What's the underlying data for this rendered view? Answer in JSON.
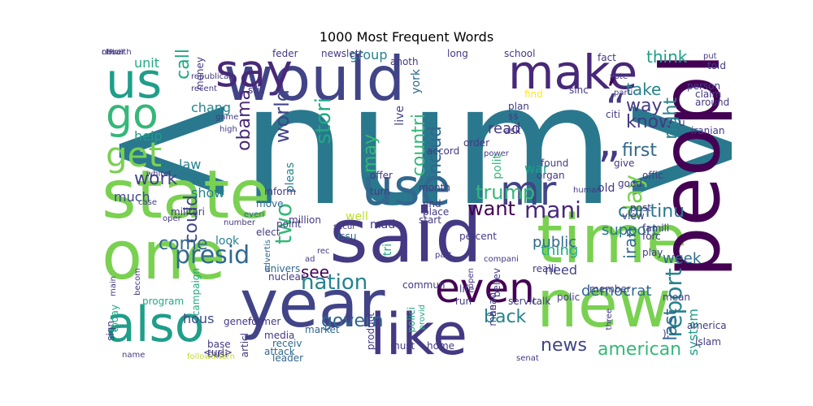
{
  "title": "1000 Most Frequent Words",
  "palette": {
    "c1": "#2a788e",
    "c2": "#443983",
    "c3": "#440154",
    "c4": "#7ad151",
    "c5": "#22a884",
    "c6": "#bddf26",
    "c7": "#414487",
    "c8": "#35b779",
    "c9": "#31688e",
    "c10": "#1f9e89",
    "c11": "#482878",
    "c12": "#fde725",
    "c13": "#26828e",
    "c14": "#3e4989",
    "c15": "#6ece58",
    "c16": "#a5db36"
  },
  "words": [
    {
      "t": "<num>",
      "c": "c1"
    },
    {
      "t": "said",
      "c": "c2"
    },
    {
      "t": "state",
      "c": "c4"
    },
    {
      "t": "one",
      "c": "c4"
    },
    {
      "t": "time",
      "c": "c4"
    },
    {
      "t": "year",
      "c": "c7"
    },
    {
      "t": "new",
      "c": "c4"
    },
    {
      "t": "would",
      "c": "c7"
    },
    {
      "t": "peopl",
      "c": "c3"
    },
    {
      "t": "make",
      "c": "c11"
    },
    {
      "t": "us",
      "c": "c10"
    },
    {
      "t": "like",
      "c": "c2"
    },
    {
      "t": "also",
      "c": "c10"
    },
    {
      "t": "use",
      "c": "c9"
    },
    {
      "t": "say",
      "c": "c11"
    },
    {
      "t": "mr",
      "c": "c7"
    },
    {
      "t": "go",
      "c": "c8"
    },
    {
      "t": "get",
      "c": "c4"
    },
    {
      "t": "even",
      "c": "c3"
    },
    {
      "t": "”",
      "c": "c2"
    },
    {
      "t": "“",
      "c": "c2"
    },
    {
      "t": "’",
      "c": "c3"
    },
    {
      "t": "know",
      "c": "c2"
    },
    {
      "t": "way",
      "c": "c2"
    },
    {
      "t": "take",
      "c": "c13"
    },
    {
      "t": "think",
      "c": "c10"
    },
    {
      "t": "report",
      "c": "c13"
    },
    {
      "t": "right",
      "c": "c13"
    },
    {
      "t": "first",
      "c": "c9"
    },
    {
      "t": "day",
      "c": "c4"
    },
    {
      "t": "mani",
      "c": "c11"
    },
    {
      "t": "want",
      "c": "c3"
    },
    {
      "t": "continu",
      "c": "c1"
    },
    {
      "t": "support",
      "c": "c1"
    },
    {
      "t": "iran",
      "c": "c9"
    },
    {
      "t": "trump",
      "c": "c8"
    },
    {
      "t": "includ",
      "c": "c9"
    },
    {
      "t": "countri",
      "c": "c8"
    },
    {
      "t": "may",
      "c": "c8"
    },
    {
      "t": "stori",
      "c": "c5"
    },
    {
      "t": "world",
      "c": "c7"
    },
    {
      "t": "obama",
      "c": "c11"
    },
    {
      "t": "two",
      "c": "c8"
    },
    {
      "t": "could",
      "c": "c7"
    },
    {
      "t": "call",
      "c": "c5"
    },
    {
      "t": "come",
      "c": "c9"
    },
    {
      "t": "work",
      "c": "c7"
    },
    {
      "t": "presid",
      "c": "c9"
    },
    {
      "t": "nation",
      "c": "c13"
    },
    {
      "t": "see",
      "c": "c3"
    },
    {
      "t": "govern",
      "c": "c9"
    },
    {
      "t": "back",
      "c": "c13"
    },
    {
      "t": "news",
      "c": "c7"
    },
    {
      "t": "american",
      "c": "c8"
    },
    {
      "t": "read",
      "c": "c2"
    },
    {
      "t": "public",
      "c": "c9"
    },
    {
      "t": "thing",
      "c": "c5"
    },
    {
      "t": "need",
      "c": "c7"
    },
    {
      "t": "last",
      "c": "c9"
    },
    {
      "t": "democrat",
      "c": "c9"
    },
    {
      "t": "week",
      "c": "c9"
    },
    {
      "t": "system",
      "c": "c10"
    },
    {
      "t": "unit",
      "c": "c5"
    },
    {
      "t": "chang",
      "c": "c13"
    },
    {
      "t": "help",
      "c": "c10"
    },
    {
      "t": "much",
      "c": "c14"
    },
    {
      "t": "law",
      "c": "c13"
    },
    {
      "t": "show",
      "c": "c13"
    },
    {
      "t": "look",
      "c": "c13"
    },
    {
      "t": "well",
      "c": "c6"
    },
    {
      "t": "made",
      "c": "c2"
    },
    {
      "t": "hous",
      "c": "c14"
    },
    {
      "t": "group",
      "c": "c13"
    },
    {
      "t": "war",
      "c": "c10"
    },
    {
      "t": "polit",
      "c": "c8"
    },
    {
      "t": "pleas",
      "c": "c13"
    },
    {
      "t": "live",
      "c": "c7"
    },
    {
      "t": "tri",
      "c": "c5"
    },
    {
      "t": "york",
      "c": "c9"
    },
    {
      "t": "militari",
      "c": "c2"
    },
    {
      "t": "white",
      "c": "c2"
    },
    {
      "t": "case",
      "c": "c2"
    },
    {
      "t": "oper",
      "c": "c2"
    },
    {
      "t": "million",
      "c": "c2"
    },
    {
      "t": "everi",
      "c": "c9"
    },
    {
      "t": "move",
      "c": "c9"
    },
    {
      "t": "inform",
      "c": "c2"
    },
    {
      "t": "elect",
      "c": "c2"
    },
    {
      "t": "advertis",
      "c": "c9"
    },
    {
      "t": "secur",
      "c": "c2"
    },
    {
      "t": "issu",
      "c": "c9"
    },
    {
      "t": "univers",
      "c": "c9"
    },
    {
      "t": "nuclear",
      "c": "c2"
    },
    {
      "t": "campaign",
      "c": "c5"
    },
    {
      "t": "market",
      "c": "c9"
    },
    {
      "t": "attack",
      "c": "c9"
    },
    {
      "t": "leader",
      "c": "c9"
    },
    {
      "t": "home",
      "c": "c2"
    },
    {
      "t": "must",
      "c": "c2"
    },
    {
      "t": "product",
      "c": "c2"
    },
    {
      "t": "polici",
      "c": "c5"
    },
    {
      "t": "provid",
      "c": "c5"
    },
    {
      "t": "media",
      "c": "c2"
    },
    {
      "t": "receiv",
      "c": "c9"
    },
    {
      "t": "former",
      "c": "c2"
    },
    {
      "t": "busi",
      "c": "c2"
    },
    {
      "t": "base",
      "c": "c2"
    },
    {
      "t": "gener",
      "c": "c2"
    },
    {
      "t": "sign",
      "c": "c2"
    },
    {
      "t": "today",
      "c": "c5"
    },
    {
      "t": "program",
      "c": "c5"
    },
    {
      "t": "name",
      "c": "c2"
    },
    {
      "t": "followintern",
      "c": "c6"
    },
    {
      "t": "<url>",
      "c": "c2"
    },
    {
      "t": "),",
      "c": "c2"
    },
    {
      "t": "islam",
      "c": "c2"
    },
    {
      "t": "america",
      "c": "c2"
    },
    {
      "t": "mean",
      "c": "c2"
    },
    {
      "t": "talk",
      "c": "c2"
    },
    {
      "t": "polic",
      "c": "c2"
    },
    {
      "t": "servic",
      "c": "c2"
    },
    {
      "t": "realli",
      "c": "c2"
    },
    {
      "t": "believ",
      "c": "c2"
    },
    {
      "t": "life",
      "c": "c2"
    },
    {
      "t": "run",
      "c": "c2"
    },
    {
      "t": "commun",
      "c": "c2"
    },
    {
      "t": "member",
      "c": "c2"
    },
    {
      "t": "percent",
      "c": "c2"
    },
    {
      "t": "start",
      "c": "c2"
    },
    {
      "t": "place",
      "c": "c2"
    },
    {
      "t": "end",
      "c": "c2"
    },
    {
      "t": "month",
      "c": "c2"
    },
    {
      "t": "turn",
      "c": "c2"
    },
    {
      "t": "offer",
      "c": "c2"
    },
    {
      "t": "found",
      "c": "c2"
    },
    {
      "t": "organ",
      "c": "c2"
    },
    {
      "t": "human",
      "c": "c2"
    },
    {
      "t": "view",
      "c": "c2"
    },
    {
      "t": "post",
      "c": "c2"
    },
    {
      "t": "famili",
      "c": "c2"
    },
    {
      "t": "play",
      "c": "c2"
    },
    {
      "t": "forc",
      "c": "c2"
    },
    {
      "t": "offic",
      "c": "c2"
    },
    {
      "t": "good",
      "c": "c2"
    },
    {
      "t": "old",
      "c": "c2"
    },
    {
      "t": "give",
      "c": "c2"
    },
    {
      "t": "u",
      "c": "c2"
    },
    {
      "t": "iranian",
      "c": "c2"
    },
    {
      "t": "around",
      "c": "c2"
    },
    {
      "t": "claim",
      "c": "c2"
    },
    {
      "t": "person",
      "c": "c2"
    },
    {
      "t": "parti",
      "c": "c2"
    },
    {
      "t": "vote",
      "c": "c2"
    },
    {
      "t": "fact",
      "c": "c2"
    },
    {
      "t": "put",
      "c": "c2"
    },
    {
      "t": "told",
      "c": "c2"
    },
    {
      "t": "citi",
      "c": "c2"
    },
    {
      "t": "sinc",
      "c": "c2"
    },
    {
      "t": "find",
      "c": "c12"
    },
    {
      "t": "plan",
      "c": "c2"
    },
    {
      "t": "school",
      "c": "c2"
    },
    {
      "t": "long",
      "c": "c2"
    },
    {
      "t": "anoth",
      "c": "c2"
    },
    {
      "t": "feder",
      "c": "c2"
    },
    {
      "t": "still",
      "c": "c2"
    },
    {
      "t": "recent",
      "c": "c2"
    },
    {
      "t": "republican",
      "c": "c2"
    },
    {
      "t": "health",
      "c": "c2"
    },
    {
      "t": "money",
      "c": "c2"
    },
    {
      "t": "game",
      "c": "c2"
    },
    {
      "t": "high",
      "c": "c2"
    },
    {
      "t": "$$",
      "c": "c2"
    },
    {
      "t": "ask",
      "c": "c2"
    },
    {
      "t": "order",
      "c": "c2"
    },
    {
      "t": "accord",
      "c": "c2"
    },
    {
      "t": "power",
      "c": "c2"
    },
    {
      "t": "number",
      "c": "c2"
    },
    {
      "t": "point",
      "c": "c2"
    },
    {
      "t": "ad",
      "c": "c2"
    },
    {
      "t": "rec",
      "c": "c2"
    },
    {
      "t": "man",
      "c": "c2"
    },
    {
      "t": "head",
      "c": "c2"
    },
    {
      "t": "part",
      "c": "c2"
    },
    {
      "t": "open",
      "c": "c2"
    },
    {
      "t": "compani",
      "c": "c2"
    },
    {
      "t": "becom",
      "c": "c2"
    },
    {
      "t": "main",
      "c": "c2"
    },
    {
      "t": "articl",
      "c": "c2"
    },
    {
      "t": "newslett",
      "c": "c2"
    },
    {
      "t": "three",
      "c": "c2"
    },
    {
      "t": "senat",
      "c": "c2"
    },
    {
      "t": "offici",
      "c": "c2"
    },
    {
      "t": "never",
      "c": "c2"
    }
  ]
}
